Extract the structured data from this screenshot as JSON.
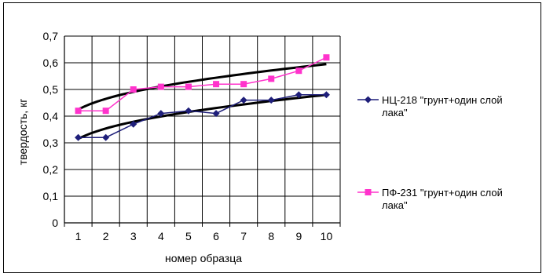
{
  "chart_data": {
    "type": "line",
    "xlabel": "номер образца",
    "ylabel": "твердость, кг",
    "x": [
      1,
      2,
      3,
      4,
      5,
      6,
      7,
      8,
      9,
      10
    ],
    "ylim": [
      0,
      0.7
    ],
    "ytick_step": 0.1,
    "grid": true,
    "legend_position": "right",
    "series": [
      {
        "name": "НЦ-218 \"грунт+один слой лака\"",
        "legend_lines": [
          "НЦ-218 \"грунт+один слой",
          "лака\""
        ],
        "color": "#1f1f7a",
        "marker": "diamond",
        "values": [
          0.32,
          0.32,
          0.37,
          0.41,
          0.42,
          0.41,
          0.46,
          0.46,
          0.48,
          0.48
        ],
        "trendline": [
          0.315,
          0.48
        ]
      },
      {
        "name": "ПФ-231 \"грунт+один слой лака\"",
        "legend_lines": [
          "ПФ-231 \"грунт+один слой",
          "лака\""
        ],
        "color": "#ff33cc",
        "marker": "square",
        "values": [
          0.42,
          0.42,
          0.5,
          0.51,
          0.51,
          0.52,
          0.52,
          0.54,
          0.57,
          0.62
        ],
        "trendline": [
          0.425,
          0.595
        ]
      }
    ]
  }
}
